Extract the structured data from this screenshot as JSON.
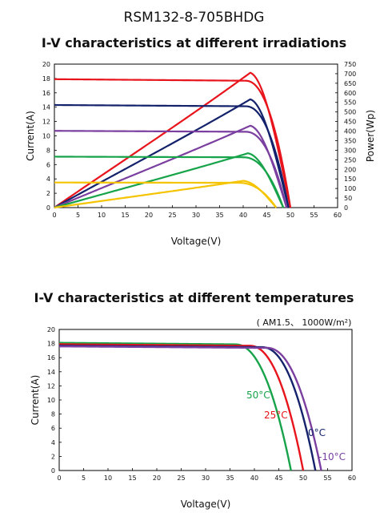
{
  "header": {
    "model": "RSM132-8-705BHDG"
  },
  "chart_data": [
    {
      "type": "line",
      "title": "I-V characteristics at different irradiations",
      "xlabel": "Voltage(V)",
      "ylabel": "Current(A)",
      "y2label": "Power(Wp)",
      "xlim": [
        0,
        60
      ],
      "ylim": [
        0,
        20
      ],
      "y2lim": [
        0,
        750
      ],
      "xticks": [
        "0",
        "5",
        "10",
        "15",
        "20",
        "25",
        "30",
        "35",
        "40",
        "45",
        "50",
        "55",
        "60"
      ],
      "yticks": [
        "0",
        "2",
        "4",
        "6",
        "8",
        "10",
        "12",
        "14",
        "16",
        "18",
        "20"
      ],
      "y2ticks": [
        "0",
        "50",
        "100",
        "150",
        "200",
        "250",
        "300",
        "350",
        "400",
        "450",
        "500",
        "550",
        "600",
        "650",
        "700",
        "750"
      ],
      "grid": false,
      "series": [
        {
          "kind": "iv",
          "color": "#e8141c",
          "isc": 17.9,
          "voc": 50.0,
          "vknee": 40.5,
          "vmp": 41.5
        },
        {
          "kind": "pv",
          "color": "#e8141c",
          "vmp": 41.5,
          "pmax": 705,
          "voc": 50.0
        },
        {
          "kind": "iv",
          "color": "#14216b",
          "isc": 14.3,
          "voc": 49.6,
          "vknee": 40.5,
          "vmp": 41.5
        },
        {
          "kind": "pv",
          "color": "#14216b",
          "vmp": 41.5,
          "pmax": 566,
          "voc": 49.6
        },
        {
          "kind": "iv",
          "color": "#7b3fa0",
          "isc": 10.7,
          "voc": 49.2,
          "vknee": 40.5,
          "vmp": 41.5
        },
        {
          "kind": "pv",
          "color": "#7b3fa0",
          "vmp": 41.5,
          "pmax": 428,
          "voc": 49.2
        },
        {
          "kind": "iv",
          "color": "#17a34a",
          "isc": 7.1,
          "voc": 48.5,
          "vknee": 40.0,
          "vmp": 41.0
        },
        {
          "kind": "pv",
          "color": "#17a34a",
          "vmp": 41.0,
          "pmax": 284,
          "voc": 48.5
        },
        {
          "kind": "iv",
          "color": "#f5c400",
          "isc": 3.5,
          "voc": 47.0,
          "vknee": 39.0,
          "vmp": 40.0
        },
        {
          "kind": "pv",
          "color": "#f5c400",
          "vmp": 40.0,
          "pmax": 140,
          "voc": 47.0
        }
      ]
    },
    {
      "type": "line",
      "title": "I-V characteristics at different temperatures",
      "condition": "( AM1.5、 1000W/m²)",
      "xlabel": "Voltage(V)",
      "ylabel": "Current(A)",
      "xlim": [
        0,
        60
      ],
      "ylim": [
        0,
        20
      ],
      "xticks": [
        "0",
        "5",
        "10",
        "15",
        "20",
        "25",
        "30",
        "35",
        "40",
        "45",
        "50",
        "55",
        "60"
      ],
      "yticks": [
        "0",
        "2",
        "4",
        "6",
        "8",
        "10",
        "12",
        "14",
        "16",
        "18",
        "20"
      ],
      "grid": false,
      "series": [
        {
          "name": "50°C",
          "color": "#17a34a",
          "isc": 18.1,
          "voc": 47.5,
          "vknee": 36.0
        },
        {
          "name": "25°C",
          "color": "#e8141c",
          "isc": 17.9,
          "voc": 50.0,
          "vknee": 39.0
        },
        {
          "name": "0°C",
          "color": "#14216b",
          "isc": 17.7,
          "voc": 52.5,
          "vknee": 41.5
        },
        {
          "name": "-10°C",
          "color": "#7b3fa0",
          "isc": 17.6,
          "voc": 53.7,
          "vknee": 42.5
        }
      ]
    }
  ]
}
